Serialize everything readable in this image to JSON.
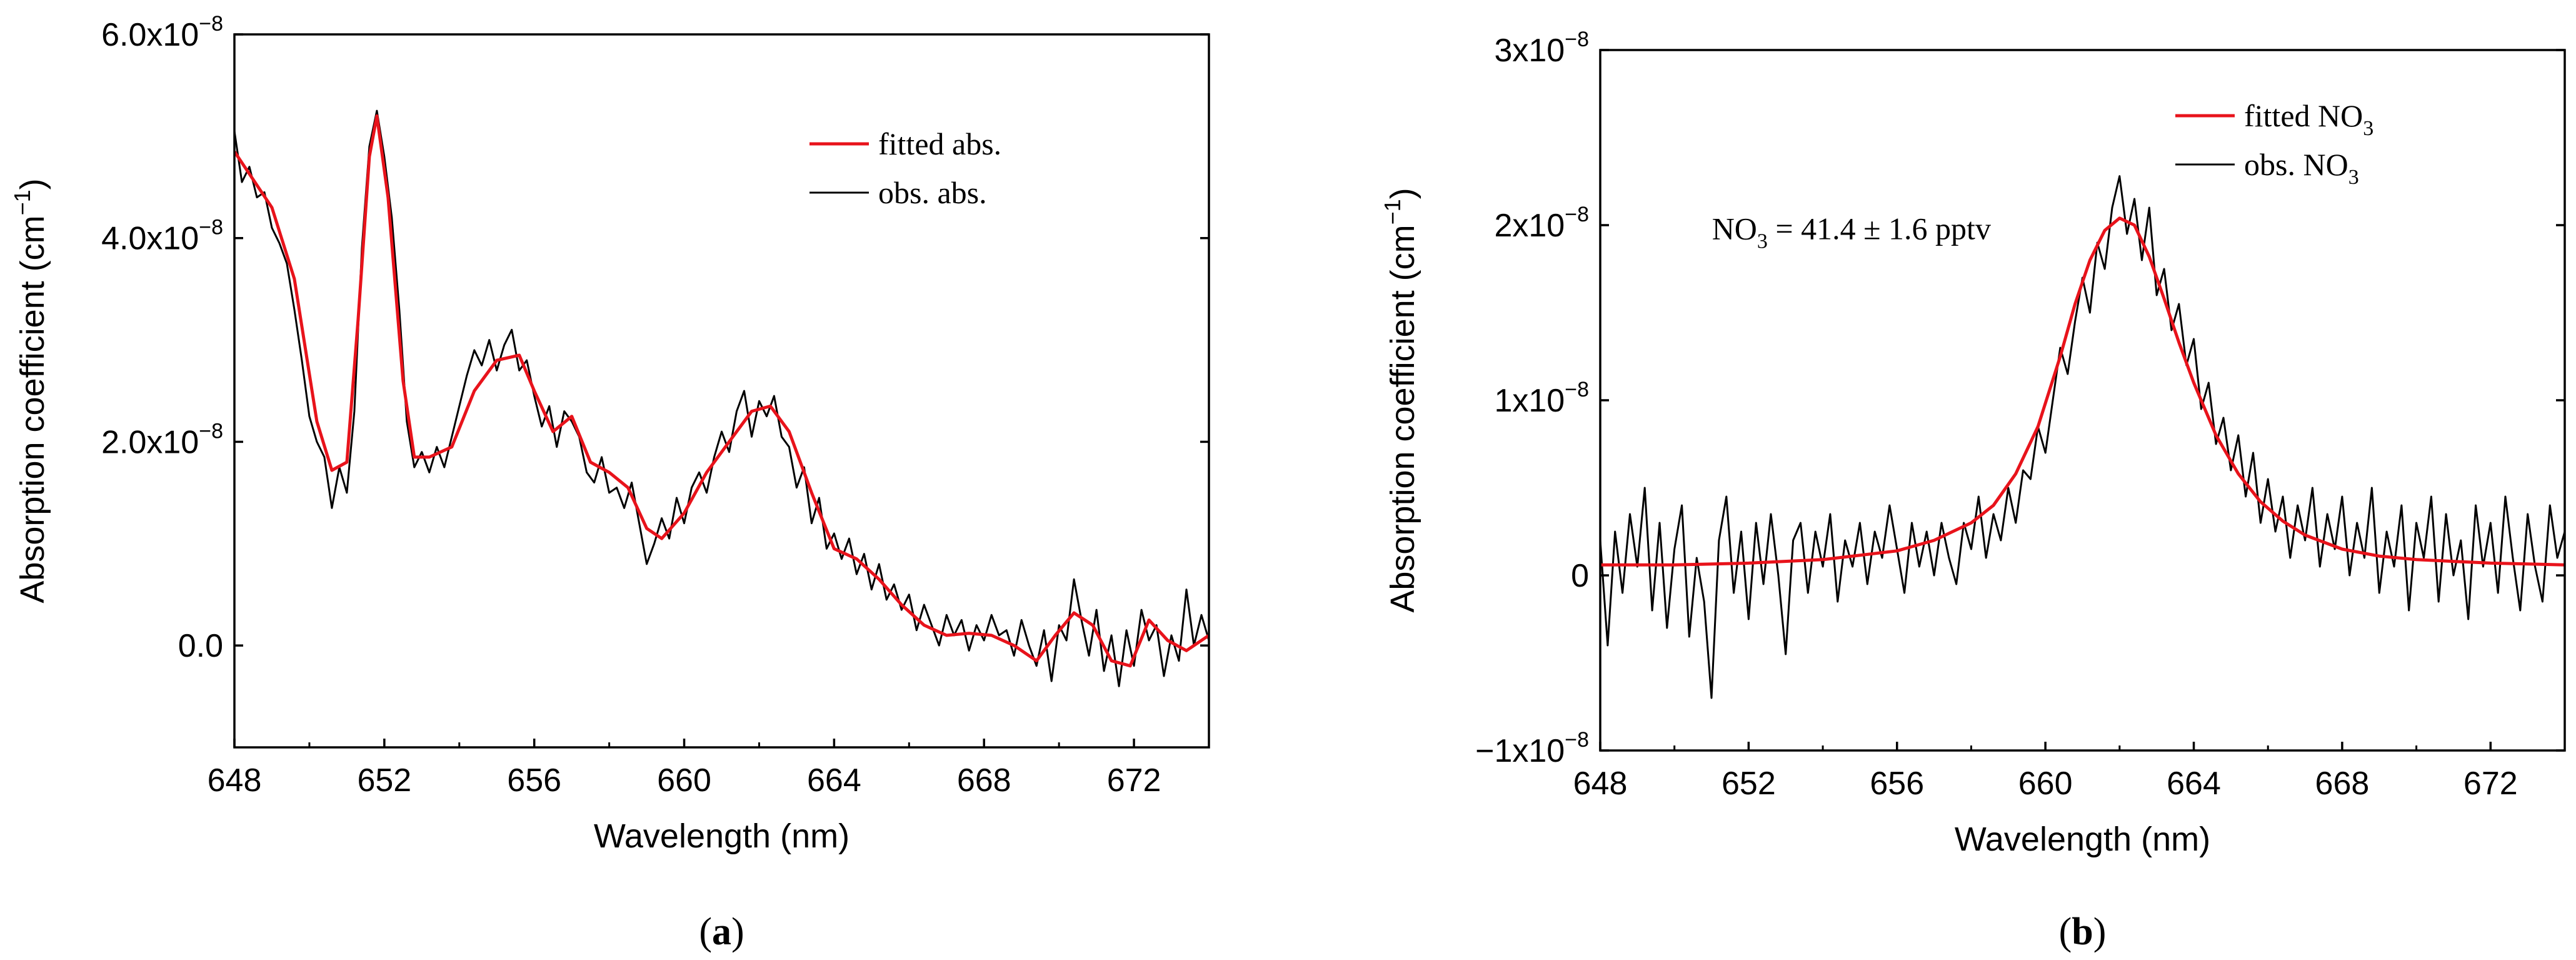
{
  "chart_data": [
    {
      "type": "line",
      "panel_label": "(a)",
      "panel_letter": "a",
      "xlabel": "Wavelength (nm)",
      "ylabel": "Absorption coefficient (cm",
      "ylabel_sup": "−1",
      "ylabel_close": ")",
      "xlim": [
        648,
        674
      ],
      "ylim": [
        -1e-08,
        6e-08
      ],
      "xticks": [
        {
          "value": 648,
          "label": "648"
        },
        {
          "value": 652,
          "label": "652"
        },
        {
          "value": 656,
          "label": "656"
        },
        {
          "value": 660,
          "label": "660"
        },
        {
          "value": 664,
          "label": "664"
        },
        {
          "value": 668,
          "label": "668"
        },
        {
          "value": 672,
          "label": "672"
        }
      ],
      "yticks": [
        {
          "value": 0.0,
          "label": "0.0",
          "exp": ""
        },
        {
          "value": 2e-08,
          "label": "2.0x10",
          "exp": "−8"
        },
        {
          "value": 4e-08,
          "label": "4.0x10",
          "exp": "−8"
        },
        {
          "value": 6e-08,
          "label": "6.0x10",
          "exp": "−8"
        }
      ],
      "legend": [
        {
          "name": "fitted abs.",
          "color": "#e8131b"
        },
        {
          "name": "obs.   abs.",
          "color": "#000000"
        }
      ],
      "annotation": null,
      "series": [
        {
          "name": "fitted abs.",
          "color": "#e8131b",
          "x": [
            648.0,
            649.0,
            649.6,
            650.2,
            650.6,
            651.0,
            651.3,
            651.6,
            651.8,
            652.1,
            652.5,
            652.8,
            653.2,
            653.8,
            654.4,
            655.0,
            655.6,
            656.0,
            656.5,
            657.0,
            657.5,
            658.0,
            658.5,
            659.0,
            659.4,
            660.0,
            660.6,
            661.2,
            661.8,
            662.3,
            662.8,
            663.4,
            664.0,
            664.6,
            665.2,
            665.8,
            666.4,
            667.0,
            667.6,
            668.2,
            668.8,
            669.4,
            669.9,
            670.4,
            670.9,
            671.4,
            671.9,
            672.4,
            672.9,
            673.4,
            674.0
          ],
          "y": [
            4.85e-08,
            4.3e-08,
            3.6e-08,
            2.2e-08,
            1.72e-08,
            1.8e-08,
            3.2e-08,
            4.8e-08,
            5.2e-08,
            4.4e-08,
            2.6e-08,
            1.85e-08,
            1.85e-08,
            1.95e-08,
            2.5e-08,
            2.8e-08,
            2.85e-08,
            2.5e-08,
            2.1e-08,
            2.25e-08,
            1.8e-08,
            1.7e-08,
            1.55e-08,
            1.15e-08,
            1.05e-08,
            1.3e-08,
            1.7e-08,
            2e-08,
            2.3e-08,
            2.35e-08,
            2.1e-08,
            1.5e-08,
            9.5e-09,
            8.5e-09,
            6.5e-09,
            4e-09,
            2e-09,
            1e-09,
            1.2e-09,
            1e-09,
            0.0,
            -1.5e-09,
            1e-09,
            3.2e-09,
            2e-09,
            -1.5e-09,
            -2e-09,
            2.5e-09,
            5e-10,
            -5e-10,
            1e-09
          ]
        },
        {
          "name": "obs.   abs.",
          "color": "#000000",
          "x": [
            648.0,
            648.2,
            648.4,
            648.6,
            648.8,
            649.0,
            649.2,
            649.4,
            649.6,
            649.8,
            650.0,
            650.2,
            650.4,
            650.6,
            650.8,
            651.0,
            651.2,
            651.4,
            651.6,
            651.8,
            652.0,
            652.2,
            652.4,
            652.6,
            652.8,
            653.0,
            653.2,
            653.4,
            653.6,
            653.8,
            654.0,
            654.2,
            654.4,
            654.6,
            654.8,
            655.0,
            655.2,
            655.4,
            655.6,
            655.8,
            656.0,
            656.2,
            656.4,
            656.6,
            656.8,
            657.0,
            657.2,
            657.4,
            657.6,
            657.8,
            658.0,
            658.2,
            658.4,
            658.6,
            658.8,
            659.0,
            659.2,
            659.4,
            659.6,
            659.8,
            660.0,
            660.2,
            660.4,
            660.6,
            660.8,
            661.0,
            661.2,
            661.4,
            661.6,
            661.8,
            662.0,
            662.2,
            662.4,
            662.6,
            662.8,
            663.0,
            663.2,
            663.4,
            663.6,
            663.8,
            664.0,
            664.2,
            664.4,
            664.6,
            664.8,
            665.0,
            665.2,
            665.4,
            665.6,
            665.8,
            666.0,
            666.2,
            666.4,
            666.6,
            666.8,
            667.0,
            667.2,
            667.4,
            667.6,
            667.8,
            668.0,
            668.2,
            668.4,
            668.6,
            668.8,
            669.0,
            669.2,
            669.4,
            669.6,
            669.8,
            670.0,
            670.2,
            670.4,
            670.6,
            670.8,
            671.0,
            671.2,
            671.4,
            671.6,
            671.8,
            672.0,
            672.2,
            672.4,
            672.6,
            672.8,
            673.0,
            673.2,
            673.4,
            673.6,
            673.8,
            674.0
          ],
          "y": [
            5.05e-08,
            4.55e-08,
            4.7e-08,
            4.4e-08,
            4.45e-08,
            4.1e-08,
            3.95e-08,
            3.75e-08,
            3.3e-08,
            2.8e-08,
            2.25e-08,
            2e-08,
            1.85e-08,
            1.35e-08,
            1.75e-08,
            1.5e-08,
            2.3e-08,
            3.9e-08,
            4.9e-08,
            5.25e-08,
            4.8e-08,
            4.2e-08,
            3.3e-08,
            2.2e-08,
            1.75e-08,
            1.9e-08,
            1.7e-08,
            1.95e-08,
            1.75e-08,
            2.05e-08,
            2.35e-08,
            2.65e-08,
            2.9e-08,
            2.75e-08,
            3e-08,
            2.7e-08,
            2.95e-08,
            3.1e-08,
            2.7e-08,
            2.8e-08,
            2.45e-08,
            2.15e-08,
            2.35e-08,
            1.95e-08,
            2.3e-08,
            2.2e-08,
            2.05e-08,
            1.7e-08,
            1.6e-08,
            1.85e-08,
            1.5e-08,
            1.55e-08,
            1.35e-08,
            1.6e-08,
            1.2e-08,
            8e-09,
            1e-08,
            1.25e-08,
            1.05e-08,
            1.45e-08,
            1.2e-08,
            1.55e-08,
            1.7e-08,
            1.5e-08,
            1.85e-08,
            2.1e-08,
            1.9e-08,
            2.3e-08,
            2.5e-08,
            2.05e-08,
            2.4e-08,
            2.25e-08,
            2.45e-08,
            2.05e-08,
            1.95e-08,
            1.55e-08,
            1.75e-08,
            1.2e-08,
            1.45e-08,
            9.5e-09,
            1.1e-08,
            8.5e-09,
            1.05e-08,
            7e-09,
            9e-09,
            5.5e-09,
            8e-09,
            4.5e-09,
            6e-09,
            3.5e-09,
            5e-09,
            1.5e-09,
            4e-09,
            2e-09,
            0.0,
            3e-09,
            1e-09,
            2.5e-09,
            -5e-10,
            2e-09,
            5e-10,
            3e-09,
            1e-09,
            1.5e-09,
            -1e-09,
            2.5e-09,
            0.0,
            -2e-09,
            1.5e-09,
            -3.5e-09,
            2e-09,
            5e-10,
            6.5e-09,
            2.5e-09,
            -1e-09,
            3.5e-09,
            -2.5e-09,
            1e-09,
            -4e-09,
            1.5e-09,
            -2e-09,
            3.5e-09,
            5e-10,
            2e-09,
            -3e-09,
            1e-09,
            -1.5e-09,
            5.5e-09,
            0.0,
            3e-09,
            5e-10
          ]
        }
      ]
    },
    {
      "type": "line",
      "panel_label": "(b)",
      "panel_letter": "b",
      "xlabel": "Wavelength (nm)",
      "ylabel": "Absorption coefficient (cm",
      "ylabel_sup": "−1",
      "ylabel_close": ")",
      "xlim": [
        648,
        674
      ],
      "ylim": [
        -1e-08,
        3e-08
      ],
      "xticks": [
        {
          "value": 648,
          "label": "648"
        },
        {
          "value": 652,
          "label": "652"
        },
        {
          "value": 656,
          "label": "656"
        },
        {
          "value": 660,
          "label": "660"
        },
        {
          "value": 664,
          "label": "664"
        },
        {
          "value": 668,
          "label": "668"
        },
        {
          "value": 672,
          "label": "672"
        }
      ],
      "yticks": [
        {
          "value": -1e-08,
          "label": "−1x10",
          "exp": "−8"
        },
        {
          "value": 0.0,
          "label": "0",
          "exp": ""
        },
        {
          "value": 1e-08,
          "label": "1x10",
          "exp": "−8"
        },
        {
          "value": 2e-08,
          "label": "2x10",
          "exp": "−8"
        },
        {
          "value": 3e-08,
          "label": "3x10",
          "exp": "−8"
        }
      ],
      "legend": [
        {
          "name": "fitted NO",
          "sub": "3",
          "color": "#e8131b"
        },
        {
          "name": "obs.   NO",
          "sub": "3",
          "color": "#000000"
        }
      ],
      "annotation": {
        "pre": "NO",
        "sub": "3",
        "post": " = 41.4 ± 1.6 pptv",
        "x": 650,
        "y": 1.92e-08
      },
      "series": [
        {
          "name": "fitted NO3",
          "color": "#e8131b",
          "x": [
            648.0,
            650.0,
            652.0,
            654.0,
            656.0,
            657.0,
            658.0,
            658.6,
            659.2,
            659.8,
            660.4,
            660.8,
            661.2,
            661.6,
            662.0,
            662.4,
            662.8,
            663.2,
            663.6,
            664.0,
            664.6,
            665.2,
            665.8,
            666.4,
            667.0,
            668.0,
            669.0,
            670.0,
            672.0,
            674.0
          ],
          "y": [
            6e-10,
            6e-10,
            7e-10,
            9e-10,
            1.4e-09,
            2e-09,
            3e-09,
            4e-09,
            5.8e-09,
            8.5e-09,
            1.25e-08,
            1.55e-08,
            1.8e-08,
            1.97e-08,
            2.04e-08,
            2e-08,
            1.82e-08,
            1.58e-08,
            1.33e-08,
            1.1e-08,
            8e-09,
            5.8e-09,
            4.2e-09,
            3.1e-09,
            2.3e-09,
            1.5e-09,
            1.1e-09,
            9e-10,
            7e-10,
            6e-10
          ]
        },
        {
          "name": "obs. NO3",
          "color": "#000000",
          "x": [
            648.0,
            648.2,
            648.4,
            648.6,
            648.8,
            649.0,
            649.2,
            649.4,
            649.6,
            649.8,
            650.0,
            650.2,
            650.4,
            650.6,
            650.8,
            651.0,
            651.2,
            651.4,
            651.6,
            651.8,
            652.0,
            652.2,
            652.4,
            652.6,
            652.8,
            653.0,
            653.2,
            653.4,
            653.6,
            653.8,
            654.0,
            654.2,
            654.4,
            654.6,
            654.8,
            655.0,
            655.2,
            655.4,
            655.6,
            655.8,
            656.0,
            656.2,
            656.4,
            656.6,
            656.8,
            657.0,
            657.2,
            657.4,
            657.6,
            657.8,
            658.0,
            658.2,
            658.4,
            658.6,
            658.8,
            659.0,
            659.2,
            659.4,
            659.6,
            659.8,
            660.0,
            660.2,
            660.4,
            660.6,
            660.8,
            661.0,
            661.2,
            661.4,
            661.6,
            661.8,
            662.0,
            662.2,
            662.4,
            662.6,
            662.8,
            663.0,
            663.2,
            663.4,
            663.6,
            663.8,
            664.0,
            664.2,
            664.4,
            664.6,
            664.8,
            665.0,
            665.2,
            665.4,
            665.6,
            665.8,
            666.0,
            666.2,
            666.4,
            666.6,
            666.8,
            667.0,
            667.2,
            667.4,
            667.6,
            667.8,
            668.0,
            668.2,
            668.4,
            668.6,
            668.8,
            669.0,
            669.2,
            669.4,
            669.6,
            669.8,
            670.0,
            670.2,
            670.4,
            670.6,
            670.8,
            671.0,
            671.2,
            671.4,
            671.6,
            671.8,
            672.0,
            672.2,
            672.4,
            672.6,
            672.8,
            673.0,
            673.2,
            673.4,
            673.6,
            673.8,
            674.0
          ],
          "y": [
            2e-09,
            -4e-09,
            2.5e-09,
            -1e-09,
            3.5e-09,
            5e-10,
            5e-09,
            -2e-09,
            3e-09,
            -3e-09,
            1.5e-09,
            4e-09,
            -3.5e-09,
            1e-09,
            -1.5e-09,
            -7e-09,
            2e-09,
            4.5e-09,
            -1e-09,
            2.5e-09,
            -2.5e-09,
            3e-09,
            -5e-10,
            3.5e-09,
            0.0,
            -4.5e-09,
            2e-09,
            3e-09,
            -1e-09,
            2.5e-09,
            5e-10,
            3.5e-09,
            -1.5e-09,
            2e-09,
            5e-10,
            3e-09,
            -5e-10,
            2.5e-09,
            1e-09,
            4e-09,
            1.5e-09,
            -1e-09,
            3e-09,
            5e-10,
            2.5e-09,
            0.0,
            3e-09,
            1e-09,
            -5e-10,
            3e-09,
            1.5e-09,
            4.5e-09,
            1e-09,
            3.5e-09,
            2e-09,
            5e-09,
            3e-09,
            6e-09,
            5.5e-09,
            8.5e-09,
            7e-09,
            1e-08,
            1.3e-08,
            1.15e-08,
            1.45e-08,
            1.7e-08,
            1.5e-08,
            1.9e-08,
            1.75e-08,
            2.1e-08,
            2.28e-08,
            1.95e-08,
            2.15e-08,
            1.8e-08,
            2.1e-08,
            1.6e-08,
            1.75e-08,
            1.4e-08,
            1.55e-08,
            1.2e-08,
            1.35e-08,
            9.5e-09,
            1.1e-08,
            7.5e-09,
            9e-09,
            6e-09,
            8e-09,
            4.5e-09,
            7e-09,
            3e-09,
            5.5e-09,
            2.5e-09,
            4.5e-09,
            1e-09,
            4e-09,
            2e-09,
            5e-09,
            5e-10,
            3.5e-09,
            1.5e-09,
            4.5e-09,
            0.0,
            3e-09,
            1e-09,
            5e-09,
            -1e-09,
            2.5e-09,
            5e-10,
            4e-09,
            -2e-09,
            3e-09,
            1e-09,
            4.5e-09,
            -1.5e-09,
            3.5e-09,
            0.0,
            2e-09,
            -2.5e-09,
            4e-09,
            5e-10,
            3e-09,
            -1e-09,
            4.5e-09,
            1e-09,
            -2e-09,
            3.5e-09,
            5e-10,
            -1.5e-09,
            4e-09,
            1e-09,
            2.5e-09
          ]
        }
      ]
    }
  ]
}
